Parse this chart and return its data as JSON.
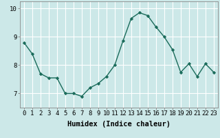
{
  "x": [
    0,
    1,
    2,
    3,
    4,
    5,
    6,
    7,
    8,
    9,
    10,
    11,
    12,
    13,
    14,
    15,
    16,
    17,
    18,
    19,
    20,
    21,
    22,
    23
  ],
  "y": [
    8.8,
    8.4,
    7.7,
    7.55,
    7.55,
    7.0,
    7.0,
    6.9,
    7.2,
    7.35,
    7.6,
    8.0,
    8.85,
    9.65,
    9.85,
    9.75,
    9.35,
    9.0,
    8.55,
    7.75,
    8.05,
    7.6,
    8.05,
    7.75
  ],
  "line_color": "#1a6b5a",
  "marker": "D",
  "marker_size": 2.2,
  "bg_color": "#cce8e8",
  "grid_color": "#ffffff",
  "xlabel": "Humidex (Indice chaleur)",
  "ylim": [
    6.5,
    10.25
  ],
  "yticks": [
    7,
    8,
    9,
    10
  ],
  "xticks": [
    0,
    1,
    2,
    3,
    4,
    5,
    6,
    7,
    8,
    9,
    10,
    11,
    12,
    13,
    14,
    15,
    16,
    17,
    18,
    19,
    20,
    21,
    22,
    23
  ],
  "xlabel_fontsize": 7.5,
  "tick_fontsize": 6.5,
  "line_width": 1.0,
  "spine_color": "#888888"
}
